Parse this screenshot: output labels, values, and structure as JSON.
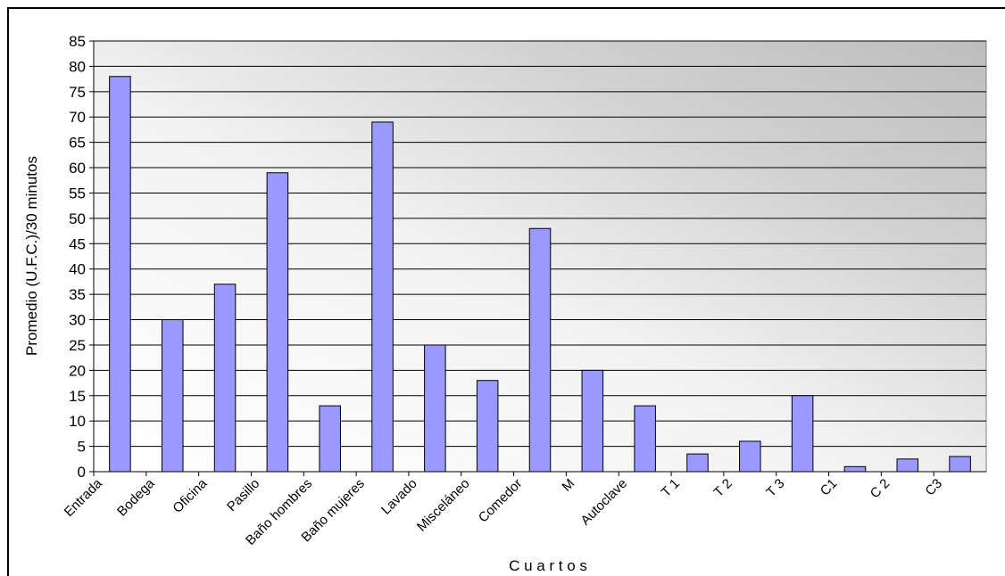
{
  "chart_data": {
    "type": "bar",
    "title": "",
    "xlabel": "C u a r t o s",
    "ylabel": "Promedio (U.F.C.)/30 minutos",
    "ylim": [
      0,
      85
    ],
    "ytick_step": 5,
    "ytick_labels": [
      "0",
      "5",
      "10",
      "15",
      "20",
      "25",
      "30",
      "35",
      "40",
      "45",
      "50",
      "55",
      "60",
      "65",
      "70",
      "75",
      "80",
      "85"
    ],
    "grid": true,
    "categories": [
      "Entrada",
      "Bodega",
      "Oficina",
      "Pasillo",
      "Baño hombres",
      "Baño mujeres",
      "Lavado",
      "Misceláneo",
      "Comedor",
      "M",
      "Autoclave",
      "T 1",
      "T 2",
      "T 3",
      "C1",
      "C 2",
      "C3"
    ],
    "values": [
      78,
      30,
      37,
      59,
      13,
      69,
      25,
      18,
      48,
      20,
      13,
      3.5,
      6,
      15,
      1,
      2.5,
      3
    ],
    "bar_color": "#9999ff",
    "plot_background": "gradient white to gray (#c0c0c0) toward top-right"
  }
}
